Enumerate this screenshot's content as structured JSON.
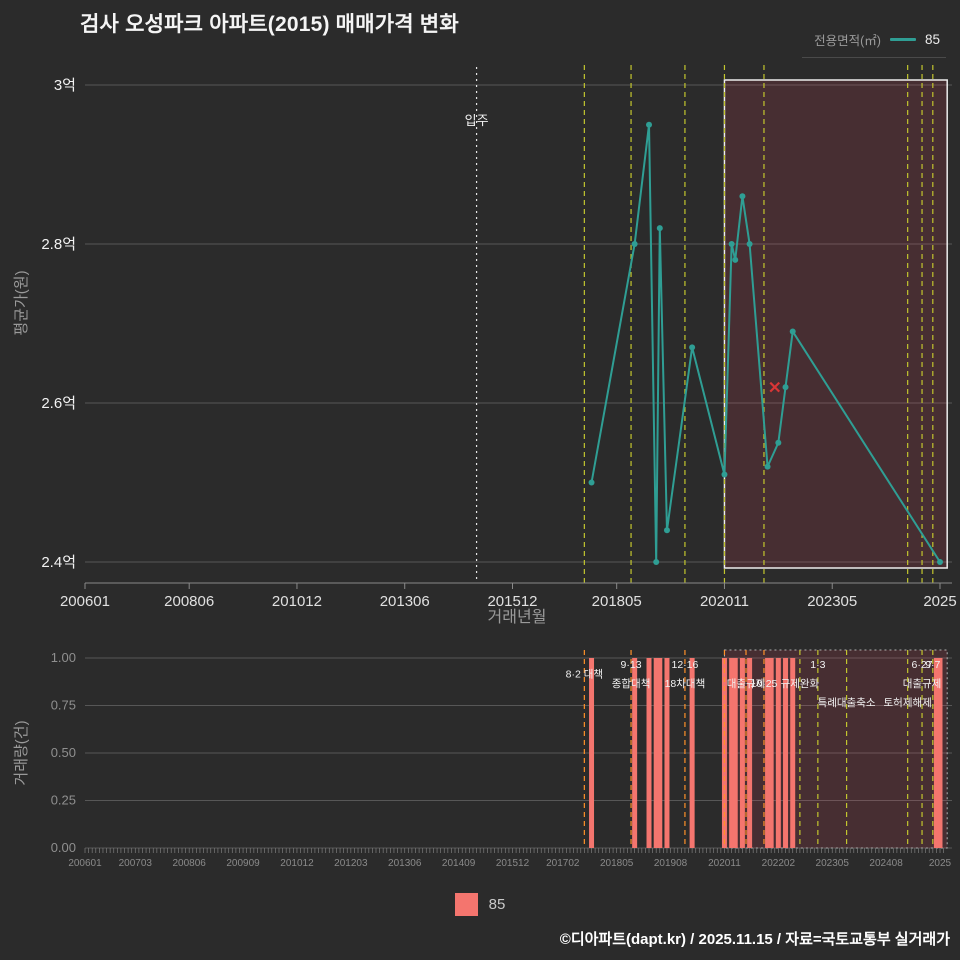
{
  "title": "검사 오성파크 아파트(2015) 매매가격 변화",
  "top_legend": {
    "label": "전용면적(㎡)",
    "series_name": "85"
  },
  "bottom_legend": {
    "series_name": "85"
  },
  "footer": "©디아파트(dapt.kr) / 2025.11.15 / 자료=국토교통부 실거래가",
  "colors": {
    "background": "#2b2b2b",
    "series_teal": "#2f9e94",
    "volume_salmon": "#f4756e",
    "policy_orange": "#ff9129",
    "policy_yellow": "#c2c62e",
    "cancel_red": "#d93636",
    "highlight_fill": "rgba(235,64,94,0.15)",
    "grid": "#575757",
    "text_bright": "#f2f2f2",
    "text_dim": "#9a9a9a"
  },
  "chart_data": [
    {
      "type": "line",
      "name": "price-history",
      "title": "검사 오성파크 아파트(2015) 매매가격 변화",
      "xlabel": "거래년월",
      "ylabel": "평균가(원)",
      "x_domain": [
        "2006-01",
        "2025-12"
      ],
      "ylim_eok": [
        2.37,
        3.02
      ],
      "grid": true,
      "yticks": [
        {
          "label": "3억",
          "value": 3.0
        },
        {
          "label": "2.8억",
          "value": 2.8
        },
        {
          "label": "2.6억",
          "value": 2.6
        },
        {
          "label": "2.4억",
          "value": 2.4
        }
      ],
      "xticks": [
        {
          "label": "200601",
          "month": "2006-01"
        },
        {
          "label": "200806",
          "month": "2008-06"
        },
        {
          "label": "201012",
          "month": "2010-12"
        },
        {
          "label": "201306",
          "month": "2013-06"
        },
        {
          "label": "201512",
          "month": "2015-12"
        },
        {
          "label": "201805",
          "month": "2018-05"
        },
        {
          "label": "202011",
          "month": "2020-11"
        },
        {
          "label": "202305",
          "month": "2023-05"
        },
        {
          "label": "2025",
          "month": "2025-11"
        }
      ],
      "move_in_line": {
        "label": "입주",
        "month": "2015-02"
      },
      "policy_lines": [
        "2017-08",
        "2018-09",
        "2019-12",
        "2020-11",
        "2021-10",
        "2025-02",
        "2025-06",
        "2025-09"
      ],
      "highlight_range": [
        "2020-11",
        "2025-12"
      ],
      "series": [
        {
          "name": "85",
          "unit": "억원",
          "points": [
            {
              "month": "2017-10",
              "price_eok": 2.5
            },
            {
              "month": "2018-10",
              "price_eok": 2.8
            },
            {
              "month": "2019-02",
              "price_eok": 2.95
            },
            {
              "month": "2019-04",
              "price_eok": 2.4
            },
            {
              "month": "2019-05",
              "price_eok": 2.82
            },
            {
              "month": "2019-07",
              "price_eok": 2.44
            },
            {
              "month": "2020-02",
              "price_eok": 2.67
            },
            {
              "month": "2020-11",
              "price_eok": 2.51
            },
            {
              "month": "2021-01",
              "price_eok": 2.8
            },
            {
              "month": "2021-02",
              "price_eok": 2.78
            },
            {
              "month": "2021-04",
              "price_eok": 2.86
            },
            {
              "month": "2021-06",
              "price_eok": 2.8
            },
            {
              "month": "2021-11",
              "price_eok": 2.52
            },
            {
              "month": "2022-02",
              "price_eok": 2.55
            },
            {
              "month": "2022-04",
              "price_eok": 2.62
            },
            {
              "month": "2022-06",
              "price_eok": 2.69
            },
            {
              "month": "2025-11",
              "price_eok": 2.4
            }
          ]
        }
      ],
      "cancelled_trade_marker": {
        "month": "2022-01",
        "price_eok": 2.62
      }
    },
    {
      "type": "bar",
      "name": "volume-history",
      "xlabel": "",
      "ylabel": "거래량(건)",
      "x_domain": [
        "2006-01",
        "2025-12"
      ],
      "ylim": [
        0,
        1.05
      ],
      "grid": true,
      "yticks": [
        {
          "label": "1.00",
          "value": 1.0
        },
        {
          "label": "0.75",
          "value": 0.75
        },
        {
          "label": "0.50",
          "value": 0.5
        },
        {
          "label": "0.25",
          "value": 0.25
        },
        {
          "label": "0.00",
          "value": 0.0
        }
      ],
      "xticks": [
        {
          "label": "200601",
          "month": "2006-01"
        },
        {
          "label": "200703",
          "month": "2007-03"
        },
        {
          "label": "200806",
          "month": "2008-06"
        },
        {
          "label": "200909",
          "month": "2009-09"
        },
        {
          "label": "201012",
          "month": "2010-12"
        },
        {
          "label": "201203",
          "month": "2012-03"
        },
        {
          "label": "201306",
          "month": "2013-06"
        },
        {
          "label": "201409",
          "month": "2014-09"
        },
        {
          "label": "201512",
          "month": "2015-12"
        },
        {
          "label": "201702",
          "month": "2017-02"
        },
        {
          "label": "201805",
          "month": "2018-05"
        },
        {
          "label": "201908",
          "month": "2019-08"
        },
        {
          "label": "202011",
          "month": "2020-11"
        },
        {
          "label": "202202",
          "month": "2022-02"
        },
        {
          "label": "202305",
          "month": "2023-05"
        },
        {
          "label": "202408",
          "month": "2024-08"
        },
        {
          "label": "2025",
          "month": "2025-11"
        }
      ],
      "highlight_range": [
        "2020-11",
        "2025-12"
      ],
      "series": [
        {
          "name": "85",
          "bars": [
            {
              "month": "2017-10",
              "count": 1
            },
            {
              "month": "2018-10",
              "count": 1
            },
            {
              "month": "2019-02",
              "count": 1
            },
            {
              "month": "2019-04",
              "count": 1
            },
            {
              "month": "2019-05",
              "count": 1
            },
            {
              "month": "2019-07",
              "count": 1
            },
            {
              "month": "2020-02",
              "count": 1
            },
            {
              "month": "2020-11",
              "count": 1
            },
            {
              "month": "2021-01",
              "count": 1
            },
            {
              "month": "2021-02",
              "count": 1
            },
            {
              "month": "2021-04",
              "count": 1
            },
            {
              "month": "2021-06",
              "count": 1
            },
            {
              "month": "2021-11",
              "count": 1
            },
            {
              "month": "2021-12",
              "count": 1
            },
            {
              "month": "2022-02",
              "count": 1
            },
            {
              "month": "2022-04",
              "count": 1
            },
            {
              "month": "2022-06",
              "count": 1
            },
            {
              "month": "2025-10",
              "count": 1
            },
            {
              "month": "2025-11",
              "count": 1
            }
          ]
        }
      ],
      "policy_lines": [
        {
          "month": "2017-08",
          "color": "orange"
        },
        {
          "month": "2018-09",
          "color": "orange"
        },
        {
          "month": "2019-12",
          "color": "orange"
        },
        {
          "month": "2020-11",
          "color": "orange"
        },
        {
          "month": "2021-05",
          "color": "orange"
        },
        {
          "month": "2021-10",
          "color": "orange"
        },
        {
          "month": "2022-08",
          "color": "yellow"
        },
        {
          "month": "2023-01",
          "color": "yellow"
        },
        {
          "month": "2023-09",
          "color": "yellow"
        },
        {
          "month": "2025-02",
          "color": "yellow"
        },
        {
          "month": "2025-06",
          "color": "yellow"
        },
        {
          "month": "2025-09",
          "color": "yellow"
        }
      ],
      "policy_annotations": [
        {
          "label": "8·2 대책",
          "month": "2017-08",
          "row": 0.5
        },
        {
          "label": "9·13",
          "month": "2018-09",
          "row": 0
        },
        {
          "label": "종합대책",
          "month": "2018-09",
          "row": 1
        },
        {
          "label": "12·16",
          "month": "2019-12",
          "row": 0
        },
        {
          "label": "18차대책",
          "month": "2019-12",
          "row": 1
        },
        {
          "label": "대출규제",
          "month": "2021-05",
          "row": 1
        },
        {
          "label": "10·25",
          "month": "2021-10",
          "row": 1
        },
        {
          "label": "규제완화",
          "month": "2022-08",
          "row": 1
        },
        {
          "label": "1·3",
          "month": "2023-01",
          "row": 0
        },
        {
          "label": "특례대출축소",
          "month": "2023-09",
          "row": 2
        },
        {
          "label": "토허제해제",
          "month": "2025-02",
          "row": 2
        },
        {
          "label": "6·27",
          "month": "2025-06",
          "row": 0
        },
        {
          "label": "대출규제",
          "month": "2025-06",
          "row": 1
        },
        {
          "label": "9·7",
          "month": "2025-09",
          "row": 0
        }
      ]
    }
  ]
}
